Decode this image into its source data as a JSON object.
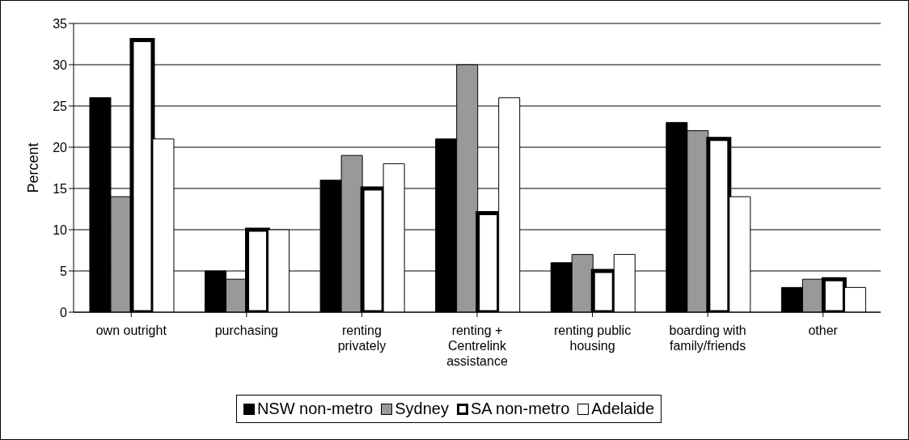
{
  "chart_data": {
    "type": "bar",
    "ylabel": "Percent",
    "categories": [
      "own outright",
      "purchasing",
      "renting privately",
      "renting + Centrelink assistance",
      "renting public housing",
      "boarding with family/friends",
      "other"
    ],
    "series": [
      {
        "name": "NSW non-metro",
        "color": "#000000",
        "values": [
          26,
          5,
          16,
          21,
          6,
          23,
          3
        ]
      },
      {
        "name": "Sydney",
        "color": "#999999",
        "values": [
          14,
          4,
          19,
          30,
          7,
          22,
          4
        ]
      },
      {
        "name": "SA non-metro",
        "color": "#ffffff",
        "values": [
          33,
          10,
          15,
          12,
          5,
          21,
          4
        ]
      },
      {
        "name": "Adelaide",
        "color": "#ffffff",
        "values": [
          21,
          10,
          18,
          26,
          7,
          14,
          3
        ]
      }
    ],
    "ylim": [
      0,
      35
    ],
    "yticks": [
      0,
      5,
      10,
      15,
      20,
      25,
      30,
      35
    ],
    "grid": "y",
    "legend": "bottom"
  }
}
